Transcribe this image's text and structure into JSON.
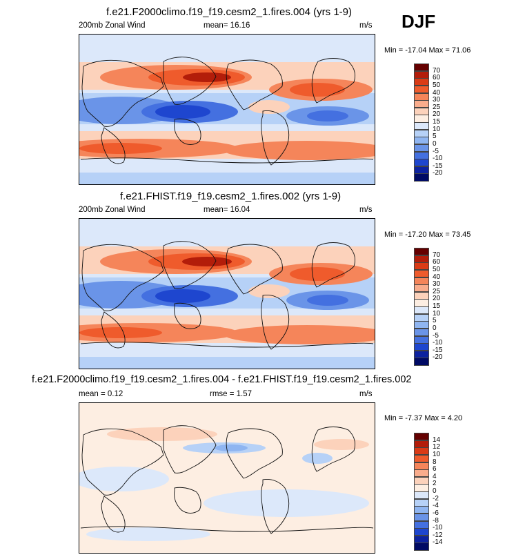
{
  "season": "DJF",
  "chart_data": [
    {
      "type": "heatmap",
      "title": "f.e21.F2000climo.f19_f19.cesm2_1.fires.004 (yrs 1-9)",
      "left_label": "200mb Zonal Wind",
      "center_label": "mean=  16.16",
      "right_label": "m/s",
      "min_max": "Min = -17.04 Max =  71.06",
      "colorbar_levels": [
        "70",
        "60",
        "50",
        "40",
        "30",
        "25",
        "20",
        "15",
        "10",
        "5",
        "0",
        "-5",
        "-10",
        "-15",
        "-20"
      ],
      "colorbar_colors": [
        "#650000",
        "#b31d0a",
        "#da3b16",
        "#ef5b2c",
        "#f5855a",
        "#f9ac8c",
        "#fcd2bb",
        "#fdeee2",
        "#dce8fa",
        "#b6d1f7",
        "#8fb5f1",
        "#6a94e8",
        "#4470e0",
        "#1e46cf",
        "#0d22a0",
        "#000a64"
      ],
      "jet_strength": 1.0
    },
    {
      "type": "heatmap",
      "title": "f.e21.FHIST.f19_f19.cesm2_1.fires.002 (yrs 1-9)",
      "left_label": "200mb Zonal Wind",
      "center_label": "mean=  16.04",
      "right_label": "m/s",
      "min_max": "Min = -17.20 Max =  73.45",
      "colorbar_levels": [
        "70",
        "60",
        "50",
        "40",
        "30",
        "25",
        "20",
        "15",
        "10",
        "5",
        "0",
        "-5",
        "-10",
        "-15",
        "-20"
      ],
      "colorbar_colors": [
        "#650000",
        "#b31d0a",
        "#da3b16",
        "#ef5b2c",
        "#f5855a",
        "#f9ac8c",
        "#fcd2bb",
        "#fdeee2",
        "#dce8fa",
        "#b6d1f7",
        "#8fb5f1",
        "#6a94e8",
        "#4470e0",
        "#1e46cf",
        "#0d22a0",
        "#000a64"
      ],
      "jet_strength": 1.03
    },
    {
      "type": "heatmap",
      "title": "f.e21.F2000climo.f19_f19.cesm2_1.fires.004 - f.e21.FHIST.f19_f19.cesm2_1.fires.002",
      "left_label": "mean =  0.12",
      "center_label": "rmse =   1.57",
      "right_label": "m/s",
      "min_max": "Min =  -7.37 Max =   4.20",
      "colorbar_levels": [
        "14",
        "12",
        "10",
        "8",
        "6",
        "4",
        "2",
        "0",
        "-2",
        "-4",
        "-6",
        "-8",
        "-10",
        "-12",
        "-14"
      ],
      "colorbar_colors": [
        "#650000",
        "#b31d0a",
        "#da3b16",
        "#ef5b2c",
        "#f5855a",
        "#f9ac8c",
        "#fcd2bb",
        "#fdeee2",
        "#dce8fa",
        "#b6d1f7",
        "#8fb5f1",
        "#6a94e8",
        "#4470e0",
        "#1e46cf",
        "#0d22a0",
        "#000a64"
      ],
      "jet_strength": 0
    }
  ]
}
